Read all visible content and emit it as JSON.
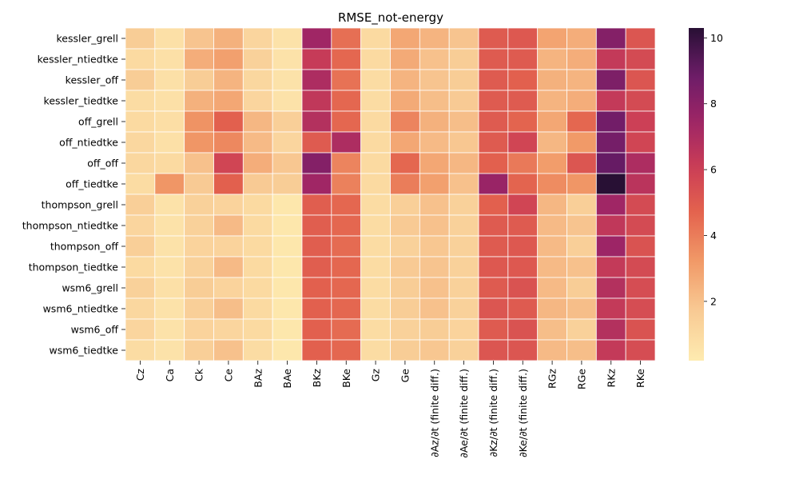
{
  "chart_data": {
    "type": "heatmap",
    "title": "RMSE_not-energy",
    "xlabel": "",
    "ylabel": "",
    "columns": [
      "Cz",
      "Ca",
      "Ck",
      "Ce",
      "BAz",
      "BAe",
      "BKz",
      "BKe",
      "Gz",
      "Ge",
      "∂Az/∂t (finite diff.)",
      "∂Ae/∂t (finite diff.)",
      "∂Kz/∂t (finite diff.)",
      "∂Ke/∂t (finite diff.)",
      "RGz",
      "RGe",
      "RKz",
      "RKe"
    ],
    "rows": [
      "kessler_grell",
      "kessler_ntiedtke",
      "kessler_off",
      "kessler_tiedtke",
      "off_grell",
      "off_ntiedtke",
      "off_off",
      "off_tiedtke",
      "thompson_grell",
      "thompson_ntiedtke",
      "thompson_off",
      "thompson_tiedtke",
      "wsm6_grell",
      "wsm6_ntiedtke",
      "wsm6_off",
      "wsm6_tiedtke"
    ],
    "values": [
      [
        1.6,
        0.7,
        1.9,
        2.5,
        1.2,
        0.6,
        7.4,
        4.4,
        1.0,
        2.8,
        2.4,
        1.9,
        5.0,
        5.1,
        2.9,
        2.6,
        8.2,
        5.2
      ],
      [
        1.0,
        0.7,
        2.6,
        3.0,
        1.4,
        0.6,
        6.2,
        4.6,
        1.0,
        2.7,
        2.0,
        1.6,
        5.0,
        5.0,
        2.4,
        2.6,
        6.3,
        5.6
      ],
      [
        1.6,
        0.7,
        1.6,
        2.4,
        1.1,
        0.6,
        7.0,
        4.3,
        0.9,
        2.4,
        1.9,
        1.6,
        5.0,
        4.8,
        2.5,
        2.4,
        8.4,
        5.2
      ],
      [
        0.9,
        0.7,
        2.5,
        2.8,
        1.2,
        0.6,
        6.4,
        4.6,
        0.9,
        2.7,
        2.1,
        1.7,
        5.0,
        5.0,
        2.4,
        2.6,
        6.3,
        5.6
      ],
      [
        1.0,
        0.8,
        3.4,
        4.8,
        2.3,
        1.5,
        6.8,
        4.6,
        1.0,
        3.8,
        2.5,
        2.1,
        5.0,
        4.7,
        2.8,
        4.6,
        8.7,
        6.0
      ],
      [
        1.1,
        0.7,
        3.3,
        3.7,
        2.2,
        1.2,
        5.0,
        7.0,
        1.0,
        2.8,
        2.2,
        1.8,
        5.0,
        5.8,
        2.3,
        3.2,
        8.6,
        5.8
      ],
      [
        1.1,
        1.0,
        2.0,
        5.8,
        2.6,
        1.8,
        8.2,
        3.8,
        1.0,
        4.6,
        2.8,
        2.3,
        4.8,
        4.1,
        3.1,
        5.2,
        9.0,
        7.0
      ],
      [
        0.9,
        3.3,
        1.7,
        4.8,
        1.7,
        1.6,
        7.4,
        3.9,
        1.0,
        4.0,
        3.0,
        2.0,
        7.6,
        4.7,
        3.6,
        3.3,
        10.3,
        6.6
      ],
      [
        1.5,
        0.6,
        1.4,
        1.3,
        1.0,
        0.4,
        4.9,
        4.6,
        0.9,
        1.5,
        2.0,
        1.4,
        4.8,
        5.8,
        2.3,
        1.5,
        7.4,
        5.6
      ],
      [
        1.2,
        0.6,
        1.4,
        2.2,
        1.0,
        0.4,
        4.9,
        4.6,
        0.9,
        1.7,
        2.0,
        1.4,
        5.0,
        5.0,
        2.2,
        1.9,
        6.4,
        5.6
      ],
      [
        1.5,
        0.6,
        1.3,
        1.3,
        1.0,
        0.4,
        4.9,
        4.5,
        0.9,
        1.4,
        1.8,
        1.4,
        5.0,
        5.1,
        2.2,
        1.5,
        7.5,
        5.3
      ],
      [
        1.0,
        0.6,
        1.4,
        2.2,
        1.0,
        0.4,
        4.9,
        4.6,
        0.9,
        1.7,
        1.9,
        1.4,
        5.1,
        5.1,
        2.2,
        2.0,
        6.3,
        5.6
      ],
      [
        1.4,
        0.7,
        1.6,
        1.3,
        1.0,
        0.4,
        4.8,
        4.6,
        0.9,
        1.6,
        2.0,
        1.4,
        5.0,
        5.3,
        2.2,
        1.6,
        6.8,
        5.5
      ],
      [
        1.1,
        0.6,
        1.5,
        2.1,
        1.0,
        0.4,
        4.8,
        4.6,
        0.9,
        1.6,
        2.0,
        1.4,
        5.2,
        5.0,
        2.3,
        2.1,
        6.3,
        5.5
      ],
      [
        1.2,
        0.6,
        1.3,
        1.2,
        1.0,
        0.4,
        4.8,
        4.5,
        0.9,
        1.4,
        1.6,
        1.3,
        5.0,
        5.3,
        2.1,
        1.4,
        6.8,
        5.3
      ],
      [
        0.9,
        0.6,
        1.5,
        2.0,
        0.9,
        0.4,
        4.8,
        4.6,
        0.9,
        1.6,
        1.8,
        1.4,
        5.2,
        5.2,
        2.2,
        2.1,
        6.3,
        5.5
      ]
    ],
    "colorbar": {
      "colormap": "flare",
      "vmin": 0.2,
      "vmax": 10.3,
      "ticks": [
        2,
        4,
        6,
        8,
        10
      ]
    },
    "cell_border_color": "#ffffff"
  }
}
